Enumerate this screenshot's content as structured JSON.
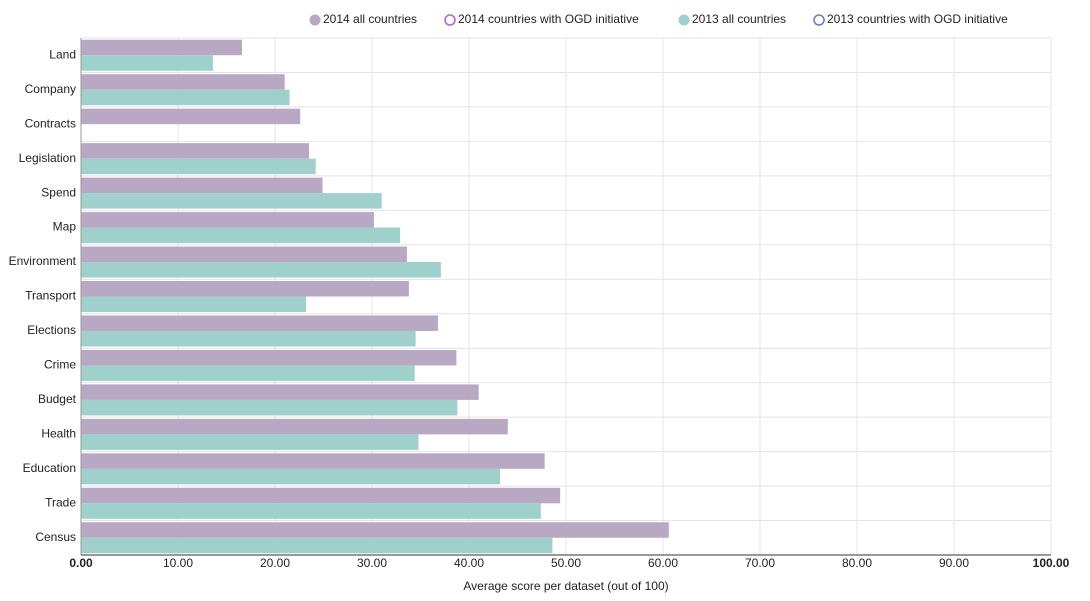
{
  "chart_data": {
    "type": "bar",
    "orientation": "horizontal",
    "xlabel": "Average score per dataset (out of 100)",
    "categories": [
      "Land",
      "Company",
      "Contracts",
      "Legislation",
      "Spend",
      "Map",
      "Environment",
      "Transport",
      "Elections",
      "Crime",
      "Budget",
      "Health",
      "Education",
      "Trade",
      "Census"
    ],
    "series": [
      {
        "name": "2014 all countries",
        "color": "#b9a8c3",
        "marker": "filled",
        "values": [
          16.6,
          21.0,
          22.6,
          23.5,
          24.9,
          30.2,
          33.6,
          33.8,
          36.8,
          38.7,
          41.0,
          44.0,
          47.8,
          49.4,
          60.6
        ]
      },
      {
        "name": "2014 countries with OGD initiative",
        "color": "#b36ad0",
        "marker": "hollow",
        "values": [
          null,
          null,
          null,
          null,
          null,
          null,
          null,
          null,
          null,
          null,
          null,
          null,
          null,
          null,
          null
        ]
      },
      {
        "name": "2013 all countries",
        "color": "#9fd0cc",
        "marker": "filled",
        "values": [
          13.6,
          21.5,
          null,
          24.2,
          31.0,
          32.9,
          37.1,
          23.2,
          34.5,
          34.4,
          38.8,
          34.8,
          43.2,
          47.4,
          48.6
        ]
      },
      {
        "name": "2013 countries with OGD initiative",
        "color": "#6a7fc9",
        "marker": "hollow",
        "values": [
          null,
          null,
          null,
          null,
          null,
          null,
          null,
          null,
          null,
          null,
          null,
          null,
          null,
          null,
          null
        ]
      }
    ],
    "xlim": [
      0,
      100
    ],
    "xticks": [
      {
        "value": 0,
        "label": "0.00"
      },
      {
        "value": 10,
        "label": "10.00"
      },
      {
        "value": 20,
        "label": "20.00"
      },
      {
        "value": 30,
        "label": "30.00"
      },
      {
        "value": 40,
        "label": "40.00"
      },
      {
        "value": 50,
        "label": "50.00"
      },
      {
        "value": 60,
        "label": "60.00"
      },
      {
        "value": 70,
        "label": "70.00"
      },
      {
        "value": 80,
        "label": "80.00"
      },
      {
        "value": 90,
        "label": "90.00"
      },
      {
        "value": 100,
        "label": "100.00"
      }
    ],
    "grid": true,
    "legend": "top"
  }
}
